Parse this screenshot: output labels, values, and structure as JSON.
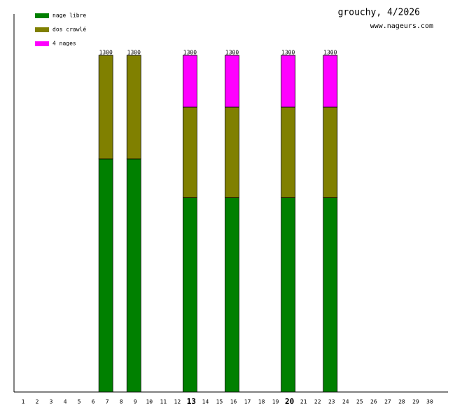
{
  "chart_data": {
    "type": "stacked-bar",
    "title": "grouchy, 4/2026",
    "subtitle": "www.nageurs.com",
    "categories": [
      1,
      2,
      3,
      4,
      5,
      6,
      7,
      8,
      9,
      10,
      11,
      12,
      13,
      14,
      15,
      16,
      17,
      18,
      19,
      20,
      21,
      22,
      23,
      24,
      25,
      26,
      27,
      28,
      29,
      30
    ],
    "bold_categories": [
      13,
      20
    ],
    "series": [
      {
        "name": "nage libre",
        "color": "#008000",
        "values": [
          null,
          null,
          null,
          null,
          null,
          null,
          900,
          null,
          900,
          null,
          null,
          null,
          750,
          null,
          null,
          750,
          null,
          null,
          null,
          750,
          null,
          null,
          750,
          null,
          null,
          null,
          null,
          null,
          null,
          null
        ]
      },
      {
        "name": "dos crawlé",
        "color": "#808000",
        "values": [
          null,
          null,
          null,
          null,
          null,
          null,
          400,
          null,
          400,
          null,
          null,
          null,
          350,
          null,
          null,
          350,
          null,
          null,
          null,
          350,
          null,
          null,
          350,
          null,
          null,
          null,
          null,
          null,
          null,
          null
        ]
      },
      {
        "name": "4 nages",
        "color": "#ff00ff",
        "values": [
          null,
          null,
          null,
          null,
          null,
          null,
          null,
          null,
          null,
          null,
          null,
          null,
          200,
          null,
          null,
          200,
          null,
          null,
          null,
          200,
          null,
          null,
          200,
          null,
          null,
          null,
          null,
          null,
          null,
          null
        ]
      }
    ],
    "stack_labels": [
      null,
      null,
      null,
      null,
      null,
      null,
      "1300",
      null,
      "1300",
      null,
      null,
      null,
      "1300",
      null,
      null,
      "1300",
      null,
      null,
      null,
      "1300",
      null,
      null,
      "1300",
      null,
      null,
      null,
      null,
      null,
      null,
      null
    ],
    "legend": "upper-left"
  }
}
